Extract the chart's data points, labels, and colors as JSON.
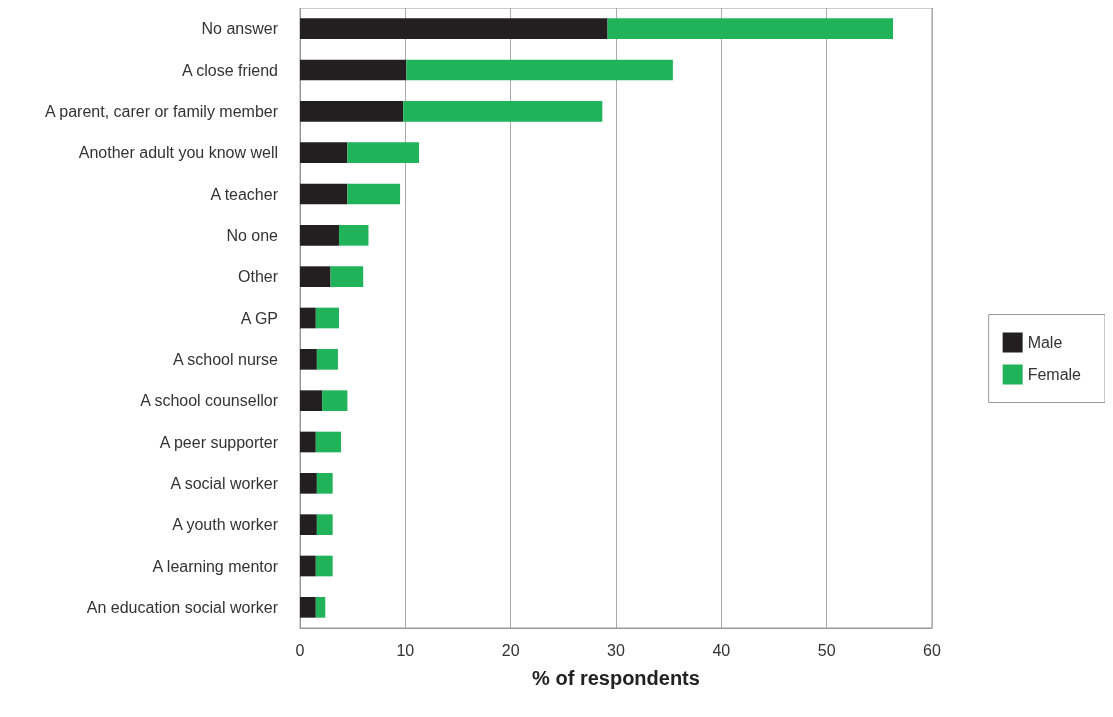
{
  "chart_data": {
    "type": "bar",
    "orientation": "horizontal",
    "stacked": true,
    "xlabel": "% of respondents",
    "categories": [
      "No answer",
      "A close friend",
      "A parent, carer or family member",
      "Another adult you know well",
      "A teacher",
      "No one",
      "Other",
      "A GP",
      "A school nurse",
      "A school counsellor",
      "A peer supporter",
      "A social worker",
      "A youth worker",
      "A learning mentor",
      "An education social worker"
    ],
    "series": [
      {
        "name": "Male",
        "color": "#231f20",
        "values": [
          29.2,
          10.1,
          9.8,
          4.5,
          4.5,
          3.7,
          2.9,
          1.5,
          1.6,
          2.1,
          1.5,
          1.6,
          1.6,
          1.5,
          1.5
        ]
      },
      {
        "name": "Female",
        "color": "#21b35a",
        "values": [
          27.1,
          25.3,
          18.9,
          6.8,
          5.0,
          2.8,
          3.1,
          2.2,
          2.0,
          2.4,
          2.4,
          1.5,
          1.5,
          1.6,
          0.9
        ]
      }
    ],
    "xlim": [
      0,
      60
    ],
    "xticks": [
      0,
      10,
      20,
      30,
      40,
      50,
      60
    ],
    "grid": "x",
    "legend": "right"
  }
}
